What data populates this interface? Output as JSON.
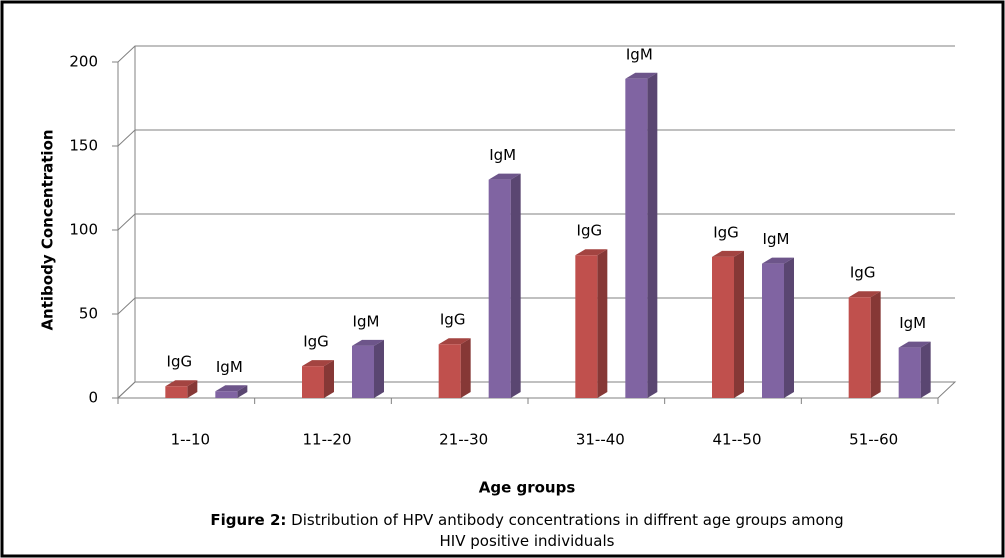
{
  "chart_data": {
    "type": "bar3d",
    "y_label": "Antibody Concentration",
    "x_label": "Age groups",
    "caption_label": "Figure 2:",
    "caption_text": "Distribution of HPV antibody concentrations in diffrent age groups among HIV positive individuals",
    "categories": [
      "1--10",
      "11--20",
      "21--30",
      "31--40",
      "41--50",
      "51--60"
    ],
    "series": [
      {
        "name": "IgG",
        "color": "#c0504d",
        "values": [
          7,
          19,
          32,
          85,
          84,
          60
        ]
      },
      {
        "name": "IgM",
        "color": "#8064a2",
        "values": [
          4,
          31,
          130,
          190,
          80,
          30
        ]
      }
    ],
    "ylim": [
      0,
      200
    ],
    "yticks": [
      0,
      50,
      100,
      150,
      200
    ],
    "grid": true
  }
}
